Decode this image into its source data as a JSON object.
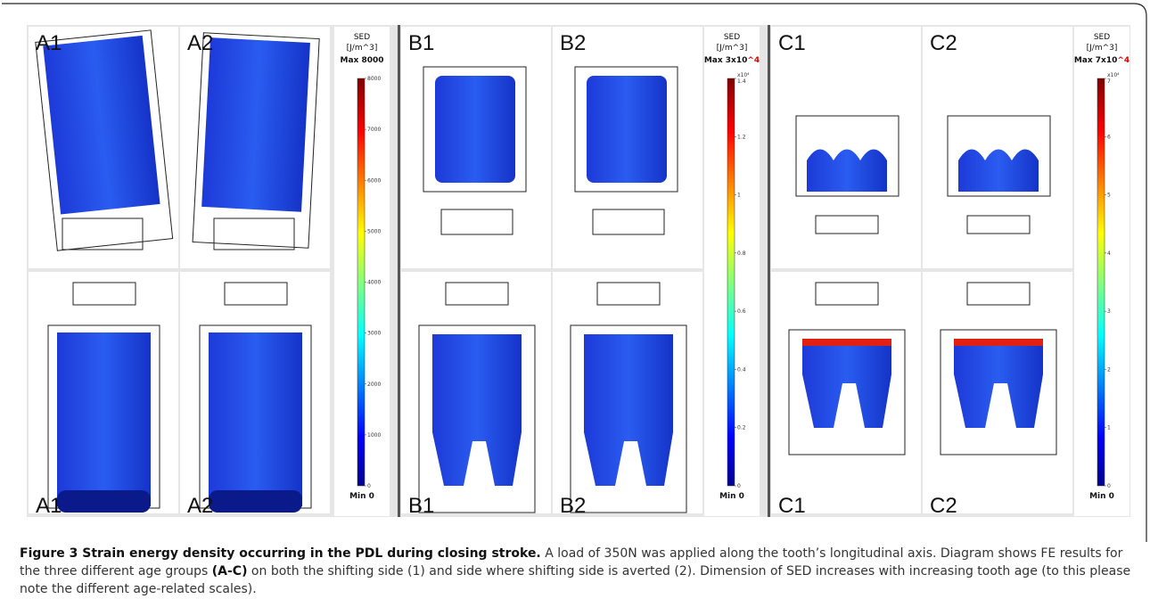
{
  "figure": {
    "groups": [
      {
        "top_labels": [
          "A1",
          "A2"
        ],
        "bottom_labels": [
          "A1",
          "A2"
        ],
        "colorbar": {
          "title": "SED",
          "unit": "[J/m^3]",
          "max_label": "Max 8000",
          "max_exponent": null,
          "min_label": "Min 0",
          "tick_exponent": null,
          "ticks": [
            0,
            1000,
            2000,
            3000,
            4000,
            5000,
            6000,
            7000,
            8000
          ]
        }
      },
      {
        "top_labels": [
          "B1",
          "B2"
        ],
        "bottom_labels": [
          "B1",
          "B2"
        ],
        "colorbar": {
          "title": "SED",
          "unit": "[J/m^3]",
          "max_label": "Max 3x10",
          "max_exponent": "^4",
          "min_label": "Min 0",
          "tick_exponent": "x10⁴",
          "ticks": [
            0,
            0.2,
            0.4,
            0.6,
            0.8,
            1,
            1.2,
            1.4
          ]
        }
      },
      {
        "top_labels": [
          "C1",
          "C2"
        ],
        "bottom_labels": [
          "C1",
          "C2"
        ],
        "colorbar": {
          "title": "SED",
          "unit": "[J/m^3]",
          "max_label": "Max 7x10",
          "max_exponent": "^4",
          "min_label": "Min 0",
          "tick_exponent": "x10⁴",
          "ticks": [
            0,
            1,
            2,
            3,
            4,
            5,
            6,
            7
          ]
        }
      }
    ],
    "caption": {
      "title": "Figure 3 Strain energy density occurring in the PDL during closing stroke.",
      "text_1": " A load of 350N was applied along the tooth’s longitudinal axis. Diagram shows FE results for the three different age groups ",
      "groups_ref": "(A-C)",
      "text_2": "  on both the shifting side (1) and side where shifting side is averted (2). Dimension of SED increases with increasing tooth age (to this please note the different age-related scales)."
    }
  }
}
